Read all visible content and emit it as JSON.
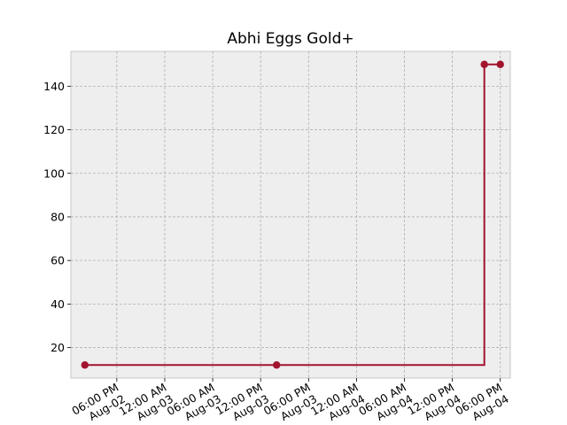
{
  "chart_data": {
    "type": "line",
    "title": "Abhi Eggs Gold+",
    "xlabel": "",
    "ylabel": "",
    "drawstyle": "steps-post",
    "x_range": [
      "2025-08-02 12:15",
      "2025-08-04 19:15"
    ],
    "ylim": [
      6,
      156
    ],
    "grid": true,
    "legend": "none",
    "series": [
      {
        "color": "#A2142F",
        "points": [
          {
            "x": "2025-08-02 14:00",
            "y": 12
          },
          {
            "x": "2025-08-03 14:00",
            "y": 12
          },
          {
            "x": "2025-08-04 16:00",
            "y": 150
          },
          {
            "x": "2025-08-04 18:00",
            "y": 150
          }
        ]
      }
    ],
    "yticks": [
      20,
      40,
      60,
      80,
      100,
      120,
      140
    ],
    "xticks": [
      {
        "x": "2025-08-02 18:00",
        "line1": "06:00 PM",
        "line2": "Aug-02"
      },
      {
        "x": "2025-08-03 00:00",
        "line1": "12:00 AM",
        "line2": "Aug-03"
      },
      {
        "x": "2025-08-03 06:00",
        "line1": "06:00 AM",
        "line2": "Aug-03"
      },
      {
        "x": "2025-08-03 12:00",
        "line1": "12:00 PM",
        "line2": "Aug-03"
      },
      {
        "x": "2025-08-03 18:00",
        "line1": "06:00 PM",
        "line2": "Aug-03"
      },
      {
        "x": "2025-08-04 00:00",
        "line1": "12:00 AM",
        "line2": "Aug-04"
      },
      {
        "x": "2025-08-04 06:00",
        "line1": "06:00 AM",
        "line2": "Aug-04"
      },
      {
        "x": "2025-08-04 12:00",
        "line1": "12:00 PM",
        "line2": "Aug-04"
      },
      {
        "x": "2025-08-04 18:00",
        "line1": "06:00 PM",
        "line2": "Aug-04"
      }
    ]
  },
  "colors": {
    "plot_background": "#EEEEEE",
    "series": "#A2142F",
    "grid": "#B0B0B0"
  }
}
